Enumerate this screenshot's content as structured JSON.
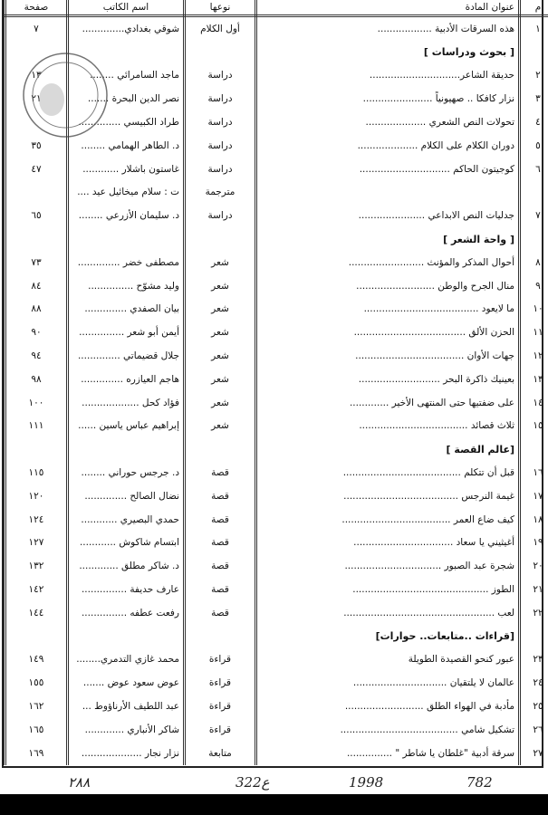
{
  "header": {
    "num": "م",
    "title": "عنوان المادة",
    "type": "نوعها",
    "author": "اسم الكاتب",
    "page": "صفحة"
  },
  "rows": [
    {
      "num": "١",
      "title": "هذه السرقات الأدبية ..................",
      "type": "أول الكلام",
      "author": "شوقي بغدادي..............",
      "page": "٧"
    },
    {
      "heading": "[ بحوث ودراسات ]"
    },
    {
      "num": "٢",
      "title": "حديقة الشاعر..............................",
      "type": "دراسة",
      "author": "ماجد السامرائي ........",
      "page": "١٣"
    },
    {
      "num": "٣",
      "title": "نزار كافكا .. صهيونياً .......................",
      "type": "دراسة",
      "author": "نصر الدين البحرة .......",
      "page": "٢١"
    },
    {
      "num": "٤",
      "title": "تحولات النص الشعري ....................",
      "type": "دراسة",
      "author": "طراد الكبيسي ..............",
      "page": ""
    },
    {
      "num": "٥",
      "title": "دوران الكلام على الكلام ....................",
      "type": "دراسة",
      "author": "د. الطاهر الهمامي ........",
      "page": "٣٥"
    },
    {
      "num": "٦",
      "title": "كوجيتون الحاكم ..............................",
      "type": "دراسة",
      "author": "غاستون باشلار ............",
      "page": "٤٧"
    },
    {
      "num": "",
      "title": "",
      "type": "مترجمة",
      "author": "ت : سلام ميخائيل عيد ....",
      "page": ""
    },
    {
      "num": "٧",
      "title": "جدليات النص الابداعي ......................",
      "type": "دراسة",
      "author": "د. سليمان الأزرعي ........",
      "page": "٦٥"
    },
    {
      "heading": "[ واحة الشعر ]"
    },
    {
      "num": "٨",
      "title": "أحوال المذكر والمؤنث .........................",
      "type": "شعر",
      "author": "مصطفى خضر ..............",
      "page": "٧٣"
    },
    {
      "num": "٩",
      "title": "منال الجرح والوطن ..........................",
      "type": "شعر",
      "author": "وليد مشوّح ...............",
      "page": "٨٤"
    },
    {
      "num": "١٠",
      "title": "ما لايعود ......................................",
      "type": "شعر",
      "author": "بيان الصفدي ..............",
      "page": "٨٨"
    },
    {
      "num": "١١",
      "title": "الحزن الألق .....................................",
      "type": "شعر",
      "author": "أيمن أبو شعر ...............",
      "page": "٩٠"
    },
    {
      "num": "١٢",
      "title": "جهات الأوان ....................................",
      "type": "شعر",
      "author": "جلال قضيماتي ..............",
      "page": "٩٤"
    },
    {
      "num": "١٣",
      "title": "بعينيك ذاكرة البحر ...........................",
      "type": "شعر",
      "author": "هاجم العيازره ..............",
      "page": "٩٨"
    },
    {
      "num": "١٤",
      "title": "على ضفتيها حتى المنتهى الأخير .............",
      "type": "شعر",
      "author": "فؤاد كحل ...................",
      "page": "١٠٠"
    },
    {
      "num": "١٥",
      "title": "ثلاث قصائد ....................................",
      "type": "شعر",
      "author": "إبراهيم عباس ياسين ......",
      "page": "١١١"
    },
    {
      "heading": "[عالم القصة ]"
    },
    {
      "num": "١٦",
      "title": "قبل أن تتكلم .......................................",
      "type": "قصة",
      "author": "د. جرجس حوراني ........",
      "page": "١١٥"
    },
    {
      "num": "١٧",
      "title": "غيمة النرجس ......................................",
      "type": "قصة",
      "author": "نضال الصالح ..............",
      "page": "١٢٠"
    },
    {
      "num": "١٨",
      "title": "كيف ضاع العمر ....................................",
      "type": "قصة",
      "author": "حمدي البصيري ............",
      "page": "١٢٤"
    },
    {
      "num": "١٩",
      "title": "أغيثيني يا سعاد .................................",
      "type": "قصة",
      "author": "ابتسام شاكوش ............",
      "page": "١٢٧"
    },
    {
      "num": "٢٠",
      "title": "شجرة عبد الصبور ................................",
      "type": "قصة",
      "author": "د. شاكر مطلق .............",
      "page": "١٣٢"
    },
    {
      "num": "٢١",
      "title": "الطوز .............................................",
      "type": "قصة",
      "author": "عارف حديفة ...............",
      "page": "١٤٢"
    },
    {
      "num": "٢٢",
      "title": "لعب ..................................................",
      "type": "قصة",
      "author": "رفعت عطفه ...............",
      "page": "١٤٤"
    },
    {
      "heading": "[قراءات ..متابعات.. حوارات]"
    },
    {
      "num": "٢٣",
      "title": "عبور كنحو القصيدة الطويلة",
      "type": "قراءة",
      "author": "محمد غازي التدمري........",
      "page": "١٤٩"
    },
    {
      "num": "٢٤",
      "title": "عالمان لا يلتقيان ...............................",
      "type": "قراءة",
      "author": "عوض سعود عوض .......",
      "page": "١٥٥"
    },
    {
      "num": "٢٥",
      "title": "مأدبة في الهواء الطلق ..........................",
      "type": "قراءة",
      "author": "عبد اللطيف الأرناؤوط ...",
      "page": "١٦٢"
    },
    {
      "num": "٢٦",
      "title": "تشكيل شامي .......................................",
      "type": "قراءة",
      "author": "شاكر الأنباري .............",
      "page": "١٦٥"
    },
    {
      "num": "٢٧",
      "title": "سرقة أدبية \"غلطان يا شاطر \" ...............",
      "type": "متابعة",
      "author": "نزار نجار ....................",
      "page": "١٦٩"
    }
  ],
  "handwriting": [
    "٢٨٨",
    "322ع",
    "1998",
    "782"
  ],
  "stamp": {
    "icon": "library-stamp-icon",
    "color": "#555555"
  }
}
